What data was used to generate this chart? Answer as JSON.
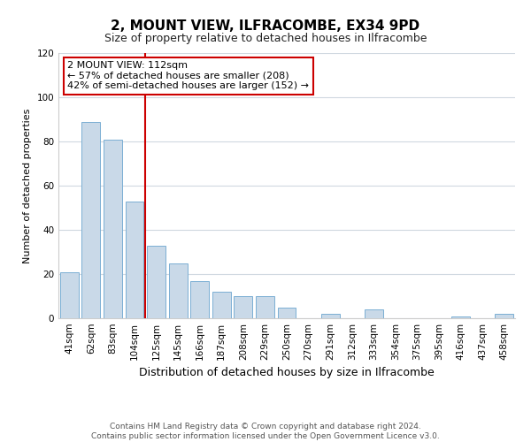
{
  "title": "2, MOUNT VIEW, ILFRACOMBE, EX34 9PD",
  "subtitle": "Size of property relative to detached houses in Ilfracombe",
  "xlabel": "Distribution of detached houses by size in Ilfracombe",
  "ylabel": "Number of detached properties",
  "bar_labels": [
    "41sqm",
    "62sqm",
    "83sqm",
    "104sqm",
    "125sqm",
    "145sqm",
    "166sqm",
    "187sqm",
    "208sqm",
    "229sqm",
    "250sqm",
    "270sqm",
    "291sqm",
    "312sqm",
    "333sqm",
    "354sqm",
    "375sqm",
    "395sqm",
    "416sqm",
    "437sqm",
    "458sqm"
  ],
  "bar_values": [
    21,
    89,
    81,
    53,
    33,
    25,
    17,
    12,
    10,
    10,
    5,
    0,
    2,
    0,
    4,
    0,
    0,
    0,
    1,
    0,
    2
  ],
  "bar_color": "#c9d9e8",
  "bar_edgecolor": "#7bafd4",
  "vline_x": 3.5,
  "vline_color": "#cc0000",
  "annotation_line1": "2 MOUNT VIEW: 112sqm",
  "annotation_line2": "← 57% of detached houses are smaller (208)",
  "annotation_line3": "42% of semi-detached houses are larger (152) →",
  "annotation_box_edgecolor": "#cc0000",
  "annotation_box_facecolor": "#ffffff",
  "ylim": [
    0,
    120
  ],
  "yticks": [
    0,
    20,
    40,
    60,
    80,
    100,
    120
  ],
  "title_fontsize": 11,
  "subtitle_fontsize": 9,
  "xlabel_fontsize": 9,
  "ylabel_fontsize": 8,
  "tick_fontsize": 7.5,
  "annotation_fontsize": 8,
  "footer_text": "Contains HM Land Registry data © Crown copyright and database right 2024.\nContains public sector information licensed under the Open Government Licence v3.0.",
  "background_color": "#ffffff",
  "grid_color": "#d0d8e0"
}
